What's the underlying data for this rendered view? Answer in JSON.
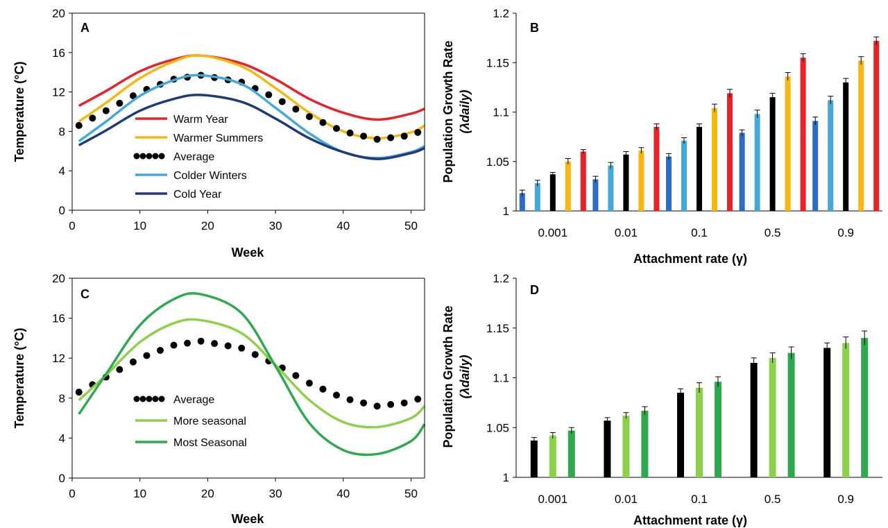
{
  "colors": {
    "warm": "#e8222a",
    "warmer": "#f5b711",
    "average": "#000000",
    "colder": "#45a9d8",
    "cold": "#1f3a7a",
    "blue": "#2b6cc4",
    "more": "#8cd04b",
    "most": "#2fa84f"
  },
  "chart_data": [
    {
      "panel": "A",
      "type": "line",
      "xlabel": "Week",
      "ylabel": "Temperature (°C)",
      "xlim": [
        0,
        52
      ],
      "ylim": [
        0,
        20
      ],
      "xticks": [
        "0",
        "10",
        "20",
        "30",
        "40",
        "50"
      ],
      "yticks": [
        "0",
        "4",
        "8",
        "12",
        "16",
        "20"
      ],
      "series": [
        {
          "name": "Warm Year",
          "color": "warm",
          "style": "solid",
          "x": [
            1,
            5,
            10,
            15,
            19,
            25,
            30,
            35,
            40,
            45,
            50,
            52
          ],
          "y": [
            10.6,
            12.1,
            14.1,
            15.3,
            15.7,
            14.9,
            13.3,
            11.3,
            9.9,
            9.2,
            9.8,
            10.3
          ]
        },
        {
          "name": "Warmer Summers",
          "color": "warmer",
          "style": "solid",
          "x": [
            1,
            5,
            10,
            15,
            19,
            25,
            30,
            35,
            40,
            45,
            50,
            52
          ],
          "y": [
            9.0,
            10.9,
            13.4,
            15.1,
            15.7,
            14.6,
            12.4,
            9.9,
            8.0,
            7.3,
            7.9,
            8.6
          ]
        },
        {
          "name": "Average",
          "color": "average",
          "style": "dotted",
          "x": [
            1,
            5,
            10,
            15,
            19,
            25,
            30,
            35,
            40,
            45,
            50,
            52
          ],
          "y": [
            8.6,
            10.1,
            12.0,
            13.3,
            13.7,
            13.0,
            11.4,
            9.5,
            8.0,
            7.2,
            7.6,
            8.2
          ]
        },
        {
          "name": "Colder Winters",
          "color": "colder",
          "style": "solid",
          "x": [
            1,
            5,
            10,
            15,
            19,
            25,
            30,
            35,
            40,
            45,
            50,
            52
          ],
          "y": [
            7.0,
            9.0,
            11.6,
            13.2,
            13.7,
            12.8,
            10.4,
            7.8,
            5.9,
            5.3,
            5.9,
            6.5
          ]
        },
        {
          "name": "Cold Year",
          "color": "cold",
          "style": "solid",
          "x": [
            1,
            5,
            10,
            15,
            19,
            25,
            30,
            35,
            40,
            45,
            50,
            52
          ],
          "y": [
            6.6,
            8.1,
            10.1,
            11.3,
            11.7,
            11.0,
            9.3,
            7.3,
            5.9,
            5.2,
            5.8,
            6.3
          ]
        }
      ],
      "legend": "inside center-left"
    },
    {
      "panel": "B",
      "type": "bar",
      "xlabel": "Attachment rate (γ)",
      "ylabel_main": "Population Growth Rate",
      "ylabel_sub": "(λdaily)",
      "ylim": [
        1,
        1.2
      ],
      "yticks": [
        "1",
        "1.05",
        "1.1",
        "1.15",
        "1.2"
      ],
      "categories": [
        "0.001",
        "0.01",
        "0.1",
        "0.5",
        "0.9"
      ],
      "series": [
        {
          "color": "blue",
          "values": [
            1.018,
            1.032,
            1.055,
            1.079,
            1.091
          ],
          "err": [
            0.003,
            0.003,
            0.003,
            0.003,
            0.004
          ]
        },
        {
          "color": "colder",
          "values": [
            1.028,
            1.046,
            1.071,
            1.098,
            1.112
          ],
          "err": [
            0.003,
            0.003,
            0.003,
            0.004,
            0.004
          ]
        },
        {
          "color": "average",
          "values": [
            1.037,
            1.057,
            1.085,
            1.115,
            1.13
          ],
          "err": [
            0.002,
            0.003,
            0.003,
            0.004,
            0.004
          ]
        },
        {
          "color": "warmer",
          "values": [
            1.05,
            1.061,
            1.104,
            1.136,
            1.152
          ],
          "err": [
            0.003,
            0.003,
            0.004,
            0.004,
            0.004
          ]
        },
        {
          "color": "warm",
          "values": [
            1.06,
            1.085,
            1.119,
            1.155,
            1.172
          ],
          "err": [
            0.002,
            0.003,
            0.004,
            0.004,
            0.004
          ]
        }
      ]
    },
    {
      "panel": "C",
      "type": "line",
      "xlabel": "Week",
      "ylabel": "Temperature (°C)",
      "xlim": [
        0,
        52
      ],
      "ylim": [
        0,
        20
      ],
      "xticks": [
        "0",
        "10",
        "20",
        "30",
        "40",
        "50"
      ],
      "yticks": [
        "0",
        "4",
        "8",
        "12",
        "16",
        "20"
      ],
      "series": [
        {
          "name": "Average",
          "color": "average",
          "style": "dotted",
          "x": [
            1,
            5,
            10,
            15,
            19,
            25,
            30,
            35,
            40,
            45,
            50,
            52
          ],
          "y": [
            8.6,
            10.1,
            12.0,
            13.3,
            13.7,
            13.0,
            11.4,
            9.5,
            8.0,
            7.2,
            7.6,
            8.2
          ]
        },
        {
          "name": "More seasonal",
          "color": "more",
          "style": "solid",
          "x": [
            1,
            5,
            10,
            15,
            19,
            25,
            30,
            35,
            40,
            45,
            50,
            52
          ],
          "y": [
            7.8,
            10.3,
            13.6,
            15.5,
            15.8,
            14.5,
            11.3,
            7.8,
            5.6,
            5.1,
            6.0,
            7.2
          ]
        },
        {
          "name": "Most Seasonal",
          "color": "most",
          "style": "solid",
          "x": [
            1,
            5,
            10,
            15,
            19,
            25,
            30,
            35,
            40,
            45,
            50,
            52
          ],
          "y": [
            6.4,
            10.4,
            15.3,
            17.9,
            18.4,
            16.5,
            11.2,
            5.5,
            2.8,
            2.4,
            3.7,
            5.4
          ]
        }
      ],
      "legend": "inside lower-left"
    },
    {
      "panel": "D",
      "type": "bar",
      "xlabel": "Attachment rate (γ)",
      "ylabel_main": "Population Growth Rate",
      "ylabel_sub": "(λdaily)",
      "ylim": [
        1,
        1.2
      ],
      "yticks": [
        "1",
        "1.05",
        "1.1",
        "1.15",
        "1.2"
      ],
      "categories": [
        "0.001",
        "0.01",
        "0.1",
        "0.5",
        "0.9"
      ],
      "series": [
        {
          "color": "average",
          "values": [
            1.037,
            1.057,
            1.085,
            1.115,
            1.13
          ],
          "err": [
            0.003,
            0.003,
            0.004,
            0.005,
            0.005
          ]
        },
        {
          "color": "more",
          "values": [
            1.042,
            1.062,
            1.09,
            1.12,
            1.135
          ],
          "err": [
            0.003,
            0.003,
            0.005,
            0.005,
            0.006
          ]
        },
        {
          "color": "most",
          "values": [
            1.047,
            1.067,
            1.096,
            1.125,
            1.14
          ],
          "err": [
            0.003,
            0.004,
            0.005,
            0.006,
            0.007
          ]
        }
      ]
    }
  ]
}
